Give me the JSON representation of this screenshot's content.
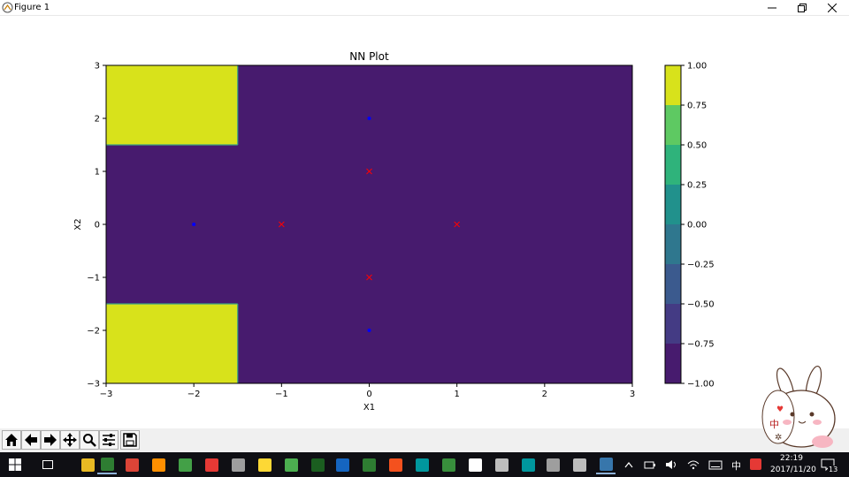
{
  "window": {
    "title": "Figure 1"
  },
  "chart_data": {
    "type": "heatmap",
    "title": "NN Plot",
    "xlabel": "X1",
    "ylabel": "X2",
    "xlim": [
      -3,
      3
    ],
    "ylim": [
      -3,
      3
    ],
    "x_ticks": [
      "−3",
      "−2",
      "−1",
      "0",
      "1",
      "2",
      "3"
    ],
    "y_ticks": [
      "3",
      "2",
      "1",
      "0",
      "−1",
      "−2",
      "−3"
    ],
    "grid": false,
    "regions": [
      {
        "x": [
          -3,
          3
        ],
        "y": [
          -3,
          3
        ],
        "level": -1.0,
        "color": "#471b6e"
      },
      {
        "x": [
          -3,
          -1.5
        ],
        "y": [
          1.5,
          3
        ],
        "level": 1.0,
        "color": "#d8e21b"
      },
      {
        "x": [
          -3,
          -1.5
        ],
        "y": [
          -3,
          -1.5
        ],
        "level": 1.0,
        "color": "#d8e21b"
      }
    ],
    "points_blue_dot": [
      {
        "x": 0,
        "y": 2
      },
      {
        "x": -2,
        "y": 0
      },
      {
        "x": 0,
        "y": -2
      }
    ],
    "points_red_x": [
      {
        "x": 0,
        "y": 1
      },
      {
        "x": -1,
        "y": 0
      },
      {
        "x": 1,
        "y": 0
      },
      {
        "x": 0,
        "y": -1
      }
    ],
    "colorbar": {
      "levels": [
        -1.0,
        -0.75,
        -0.5,
        -0.25,
        0.0,
        0.25,
        0.5,
        0.75,
        1.0
      ],
      "tick_labels": [
        "1.00",
        "0.75",
        "0.50",
        "0.25",
        "0.00",
        "−0.25",
        "−0.50",
        "−0.75",
        "−1.00"
      ],
      "band_colors": [
        "#471b6e",
        "#443b84",
        "#3b5a8e",
        "#2f778e",
        "#21918c",
        "#2fb37b",
        "#5ec962",
        "#a3d74a"
      ],
      "top_color": "#d8e21b"
    }
  },
  "toolbar": {
    "buttons": [
      "home-icon",
      "back-icon",
      "forward-icon",
      "pan-icon",
      "zoom-icon",
      "configure-icon",
      "save-icon"
    ]
  },
  "taskbar": {
    "time": "22:19",
    "date": "2017/11/20",
    "ime": "中",
    "notifications": "13",
    "apps": [
      {
        "name": "file-explorer-icon",
        "color": "#e8b923"
      },
      {
        "name": "terminal-icon",
        "color": "#2e7d32"
      },
      {
        "name": "chrome-icon",
        "color": "#db4437"
      },
      {
        "name": "app-icon-s",
        "color": "#ff8f00"
      },
      {
        "name": "app-icon-green",
        "color": "#43a047"
      },
      {
        "name": "app-icon-s2",
        "color": "#e53935"
      },
      {
        "name": "pen-icon",
        "color": "#9e9e9e"
      },
      {
        "name": "sticky-notes-icon",
        "color": "#fdd835"
      },
      {
        "name": "wechat-icon",
        "color": "#4caf50"
      },
      {
        "name": "app-icon-v",
        "color": "#1b5e20"
      },
      {
        "name": "doc-icon",
        "color": "#1565c0"
      },
      {
        "name": "excel-icon",
        "color": "#2e7d32"
      },
      {
        "name": "git-icon",
        "color": "#f4511e"
      },
      {
        "name": "arduino-icon",
        "color": "#00979d"
      },
      {
        "name": "app-icon-stripe",
        "color": "#388e3c"
      },
      {
        "name": "settings-icon",
        "color": "#ffffff"
      },
      {
        "name": "screen-icon",
        "color": "#bdbdbd"
      },
      {
        "name": "arduino2-icon",
        "color": "#00979d"
      },
      {
        "name": "keyboard-icon",
        "color": "#9e9e9e"
      },
      {
        "name": "device-icon",
        "color": "#bdbdbd"
      },
      {
        "name": "python-icon",
        "color": "#3776ab"
      }
    ]
  }
}
